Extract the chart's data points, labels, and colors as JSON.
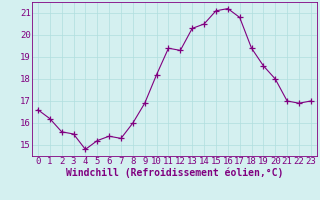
{
  "x": [
    0,
    1,
    2,
    3,
    4,
    5,
    6,
    7,
    8,
    9,
    10,
    11,
    12,
    13,
    14,
    15,
    16,
    17,
    18,
    19,
    20,
    21,
    22,
    23
  ],
  "y": [
    16.6,
    16.2,
    15.6,
    15.5,
    14.8,
    15.2,
    15.4,
    15.3,
    16.0,
    16.9,
    18.2,
    19.4,
    19.3,
    20.3,
    20.5,
    21.1,
    21.2,
    20.8,
    19.4,
    18.6,
    18.0,
    17.0,
    16.9,
    17.0
  ],
  "line_color": "#800080",
  "marker": "+",
  "marker_size": 4,
  "background_color": "#d4f0f0",
  "grid_color": "#b0dede",
  "tick_label_color": "#800080",
  "xlabel": "Windchill (Refroidissement éolien,°C)",
  "xlabel_color": "#800080",
  "xlim": [
    -0.5,
    23.5
  ],
  "ylim": [
    14.5,
    21.5
  ],
  "yticks": [
    15,
    16,
    17,
    18,
    19,
    20,
    21
  ],
  "xticks": [
    0,
    1,
    2,
    3,
    4,
    5,
    6,
    7,
    8,
    9,
    10,
    11,
    12,
    13,
    14,
    15,
    16,
    17,
    18,
    19,
    20,
    21,
    22,
    23
  ],
  "tick_font_size": 6.5,
  "label_font_size": 7.0,
  "spine_color": "#800080",
  "linewidth": 0.8
}
